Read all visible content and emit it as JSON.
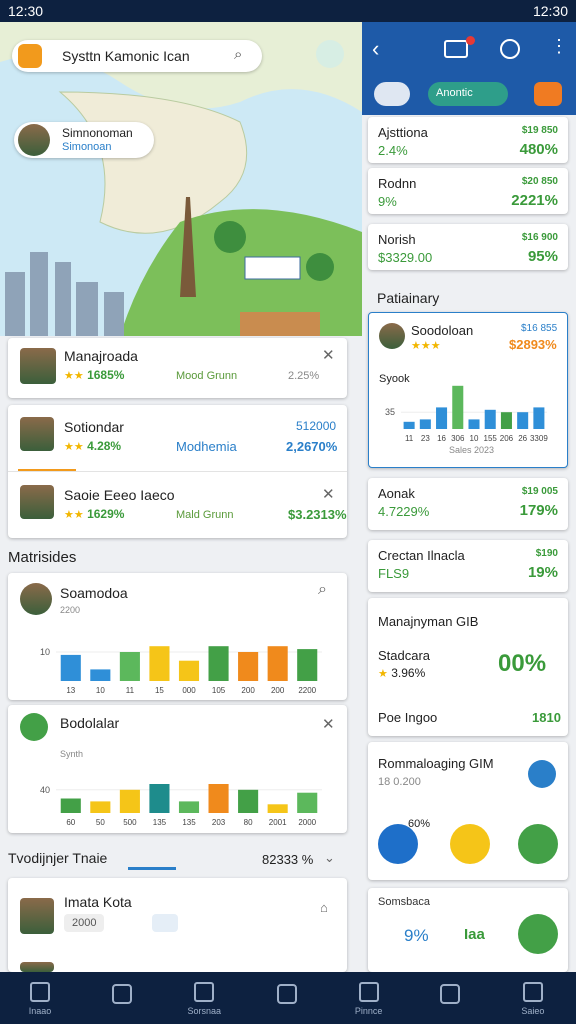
{
  "status": {
    "time": "12:30",
    "time_right": "12:30"
  },
  "map": {
    "search": "Systtn Kamonic Ican",
    "profile_name": "Simnonoman",
    "profile_sub": "Simonoan"
  },
  "left_cards": [
    {
      "title": "Manajroada",
      "rating": "1685%",
      "tag": "Mood Grunn",
      "value": "2.25%"
    },
    {
      "title": "Sotiondar",
      "rating": "4.28%",
      "tag": "Modhemia",
      "value_top": "512000",
      "value": "2,2670%"
    },
    {
      "title": "Saoie Eeeo Iaeco",
      "rating": "1629%",
      "tag": "Mald Grunn",
      "value": "$3.2313%"
    }
  ],
  "section_title": "Matrisides",
  "chart_cards": [
    {
      "title": "Soamodoa",
      "sub": "2200",
      "chart": {
        "type": "bar",
        "categories": [
          "13",
          "10",
          "11",
          "15",
          "000",
          "105",
          "200",
          "200",
          "2200"
        ],
        "values": [
          9,
          4,
          10,
          12,
          7,
          12,
          10,
          12,
          11
        ],
        "colors": [
          "#2f8fd8",
          "#2f8fd8",
          "#5cb85c",
          "#f5c518",
          "#f5c518",
          "#43a047",
          "#f08a1c",
          "#f08a1c",
          "#43a047"
        ],
        "ylim": [
          0,
          20
        ],
        "yticks": [
          10
        ]
      }
    },
    {
      "title": "Bodolalar",
      "sub": "Synth",
      "chart": {
        "type": "bar",
        "categories": [
          "60",
          "50",
          "500",
          "135",
          "135",
          "203",
          "80",
          "2001",
          "2000"
        ],
        "values": [
          25,
          20,
          40,
          50,
          20,
          50,
          40,
          15,
          35
        ],
        "colors": [
          "#43a047",
          "#f5c518",
          "#f5c518",
          "#1e8c8c",
          "#5cb85c",
          "#f08a1c",
          "#43a047",
          "#f5c518",
          "#5cb85c"
        ],
        "ylim": [
          0,
          100
        ],
        "yticks": [
          40
        ]
      }
    }
  ],
  "section2": {
    "title": "Tvodijnjer Tnaie",
    "value": "82333 %"
  },
  "profile": {
    "name": "Imata Kota",
    "tag": "2000"
  },
  "header": {
    "chip": "Anontic"
  },
  "right_cards": [
    {
      "title": "Ajsttiona",
      "sub": "2.4%",
      "small": "$19 850",
      "value": "480%"
    },
    {
      "title": "Rodnn",
      "sub": "9%",
      "small": "$20 850",
      "value": "2221%"
    },
    {
      "title": "Norish",
      "sub": "$3329.00",
      "small": "$16 900",
      "value": "95%"
    }
  ],
  "right_section": "Patiainary",
  "right_chart": {
    "title": "Soodoloan",
    "small": "$16 855",
    "value": "$2893%",
    "label": "Syook",
    "caption": "Sales 2023",
    "chart": {
      "type": "bar",
      "categories": [
        "11",
        "23",
        "16",
        "306",
        "10",
        "155",
        "206",
        "26",
        "3309"
      ],
      "values": [
        15,
        20,
        45,
        90,
        20,
        40,
        35,
        35,
        45
      ],
      "colors": [
        "#2f8fd8",
        "#2f8fd8",
        "#2f8fd8",
        "#5cb85c",
        "#2f8fd8",
        "#2f8fd8",
        "#43a047",
        "#2f8fd8",
        "#2f8fd8"
      ],
      "ylim": [
        0,
        100
      ],
      "yticks": [
        35
      ]
    }
  },
  "right_cards2": [
    {
      "title": "Aonak",
      "sub": "4.7229%",
      "small": "$19 005",
      "value": "179%"
    },
    {
      "title": "Crectan Ilnacla",
      "sub": "FLS9",
      "small": "$190",
      "value": "19%"
    }
  ],
  "right_misc": {
    "manage": "Manajnyman GIB",
    "stad": "Stadcara",
    "stad_sub": "3.96%",
    "stad_value": "00%",
    "poe": "Poe Ingoo",
    "poe_value": "1810",
    "rom": "Rommaloaging GIM",
    "rom_sub": "18 0.200",
    "btn_pct": "60%",
    "last": "Somsbaca",
    "last_value": "9%",
    "last_tag": "Iaa"
  },
  "nav": [
    "Inaao",
    "Sorsnaa",
    "Pinnce",
    "Saieo"
  ]
}
